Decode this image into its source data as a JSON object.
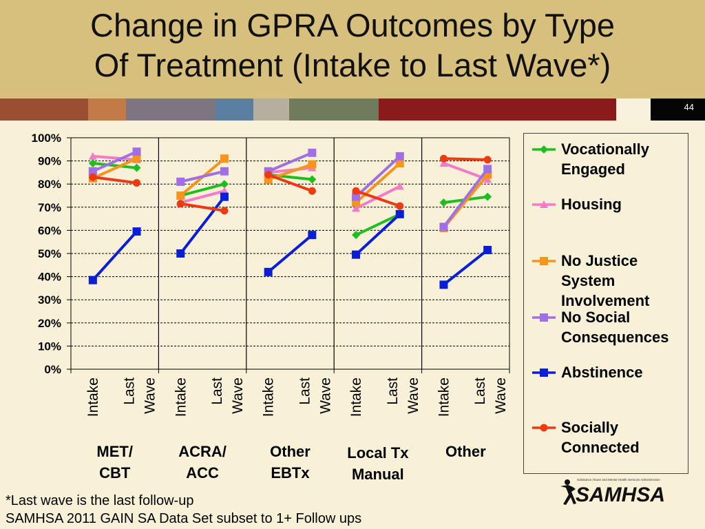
{
  "slide": {
    "title": "Change in GPRA Outcomes by Type\nOf Treatment (Intake to Last Wave*)",
    "number": "44",
    "footnote": "*Last wave is the last follow-up",
    "source": "SAMHSA 2011 GAIN SA Data Set subset to 1+ Follow ups",
    "logo_text": "SAMHSA",
    "logo_subtext": "Substance Abuse and Mental Health Services Administration",
    "strip_colors": [
      "#9a4f32",
      "#c27b47",
      "#7d7580",
      "#5b7fa0",
      "#b6ae9e",
      "#6f7b5b",
      "#8a1a1c",
      "#8a1a1c",
      "#f7f1de",
      "#050505"
    ]
  },
  "chart_data": {
    "type": "line",
    "title": "Change in GPRA Outcomes by Type Of Treatment (Intake to Last Wave*)",
    "ylim": [
      0,
      100
    ],
    "yticks": [
      "0%",
      "10%",
      "20%",
      "30%",
      "40%",
      "50%",
      "60%",
      "70%",
      "80%",
      "90%",
      "100%"
    ],
    "grid": true,
    "legend_position": "right",
    "groups": [
      {
        "label": "MET/\nCBT",
        "categories": [
          "Intake",
          "Last\nWave"
        ]
      },
      {
        "label": "ACRA/\nACC",
        "categories": [
          "Intake",
          "Last\nWave"
        ]
      },
      {
        "label": "Other\nEBTx",
        "categories": [
          "Intake",
          "Last\nWave"
        ]
      },
      {
        "label": "Local Tx\nManual",
        "categories": [
          "Intake",
          "Last\nWave"
        ]
      },
      {
        "label": "Other",
        "categories": [
          "Intake",
          "Last\nWave"
        ]
      }
    ],
    "series": [
      {
        "name": "Vocationally\nEngaged",
        "color": "#1fbe1f",
        "marker": "diamond",
        "values": [
          [
            89,
            87
          ],
          [
            75,
            80
          ],
          [
            84,
            82
          ],
          [
            58,
            67
          ],
          [
            72,
            74.5
          ]
        ]
      },
      {
        "name": "Housing",
        "color": "#f57ac8",
        "marker": "triangle",
        "values": [
          [
            92,
            90.5
          ],
          [
            72,
            77
          ],
          [
            85,
            87
          ],
          [
            69.5,
            79
          ],
          [
            89,
            82
          ]
        ]
      },
      {
        "name": "No Justice\nSystem\nInvolvement",
        "color": "#f7941d",
        "marker": "square",
        "values": [
          [
            82.5,
            91
          ],
          [
            75,
            91
          ],
          [
            82,
            88.5
          ],
          [
            72,
            89
          ],
          [
            61,
            84
          ]
        ]
      },
      {
        "name": "No Social\nConsequences",
        "color": "#a06fe6",
        "marker": "square",
        "values": [
          [
            85.5,
            94
          ],
          [
            81,
            85.5
          ],
          [
            85.5,
            93.5
          ],
          [
            74.5,
            92
          ],
          [
            61.5,
            86.5
          ]
        ]
      },
      {
        "name": "Abstinence",
        "color": "#0a1ed6",
        "marker": "square",
        "values": [
          [
            38.5,
            59.5
          ],
          [
            50,
            74.5
          ],
          [
            42,
            58
          ],
          [
            49.5,
            67
          ],
          [
            36.5,
            51.5
          ]
        ]
      },
      {
        "name": "Socially\nConnected",
        "color": "#ec3b12",
        "marker": "circle",
        "values": [
          [
            83,
            80.5
          ],
          [
            71.5,
            68.5
          ],
          [
            84,
            77
          ],
          [
            77,
            70.5
          ],
          [
            91,
            90.5
          ]
        ]
      }
    ]
  }
}
